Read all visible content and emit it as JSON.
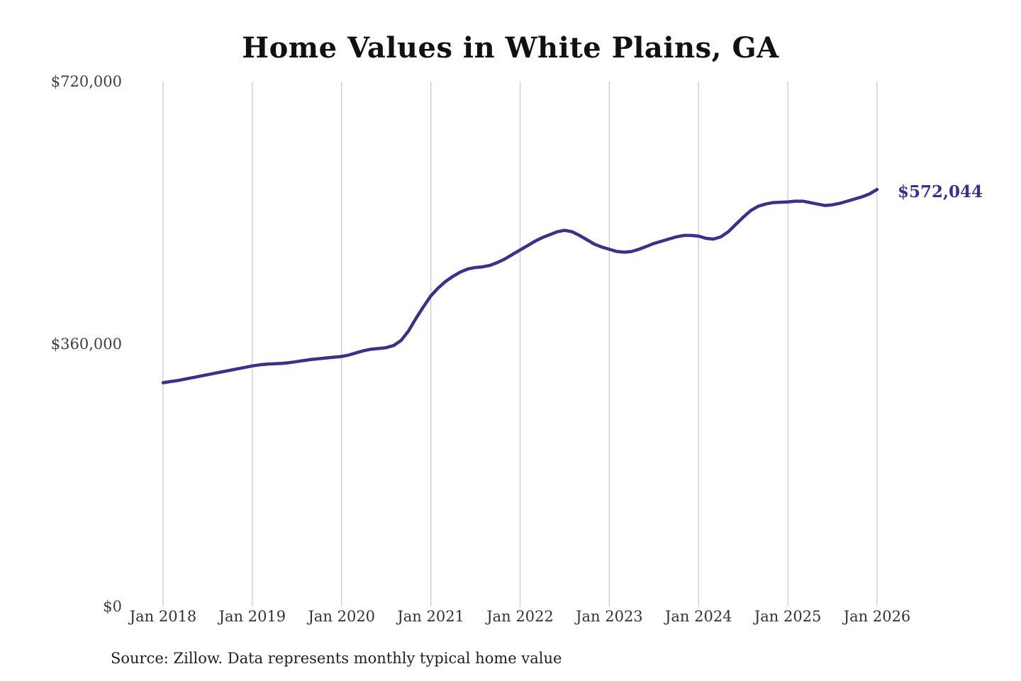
{
  "chart": {
    "title": "Home Values in White Plains, GA",
    "end_label": "$572,044",
    "source": "Source: Zillow. Data represents monthly typical home value"
  },
  "colors": {
    "line": "#39328b",
    "end_label": "#37318e",
    "gridline": "#cccccc",
    "title": "#111111",
    "axis_text": "#3d3d3d",
    "background": "#ffffff"
  },
  "chart_data": {
    "type": "line",
    "title": "Home Values in White Plains, GA",
    "xlabel": "",
    "ylabel": "",
    "x_start": "2018-01",
    "x_freq_months": 1,
    "x_tick_labels": [
      "Jan 2018",
      "Jan 2019",
      "Jan 2020",
      "Jan 2021",
      "Jan 2022",
      "Jan 2023",
      "Jan 2024",
      "Jan 2025",
      "Jan 2026"
    ],
    "x_tick_month_indices": [
      0,
      12,
      24,
      36,
      48,
      60,
      72,
      84,
      96
    ],
    "ylim": [
      0,
      720000
    ],
    "yticks": [
      {
        "label": "$720,000",
        "value": 720000
      },
      {
        "label": "$360,000",
        "value": 360000
      },
      {
        "label": "$0",
        "value": 0
      }
    ],
    "grid": "vertical-only",
    "legend": "none",
    "last_value": 572044,
    "series": [
      {
        "name": "Monthly typical home value",
        "values": [
          307000,
          308500,
          310000,
          312000,
          314000,
          316000,
          318000,
          320000,
          322000,
          324000,
          326000,
          328000,
          330000,
          331500,
          332500,
          333000,
          333500,
          334500,
          336000,
          337500,
          339000,
          340000,
          341000,
          342000,
          343000,
          345000,
          348000,
          351000,
          353000,
          354000,
          355000,
          358000,
          365000,
          378000,
          395000,
          411000,
          426000,
          437000,
          446000,
          453000,
          459000,
          463000,
          465000,
          466000,
          468000,
          472000,
          477000,
          483000,
          489000,
          495000,
          501000,
          506000,
          510000,
          514000,
          516000,
          514000,
          509000,
          503000,
          497000,
          493000,
          490000,
          487000,
          486000,
          487000,
          490000,
          494000,
          498000,
          501000,
          504000,
          507000,
          509000,
          509000,
          508000,
          505000,
          504000,
          507000,
          514000,
          524000,
          534000,
          543000,
          549000,
          552000,
          554000,
          554500,
          555000,
          556000,
          556000,
          554000,
          552000,
          550000,
          551000,
          553000,
          556000,
          559000,
          562000,
          566000,
          572044
        ]
      }
    ]
  }
}
